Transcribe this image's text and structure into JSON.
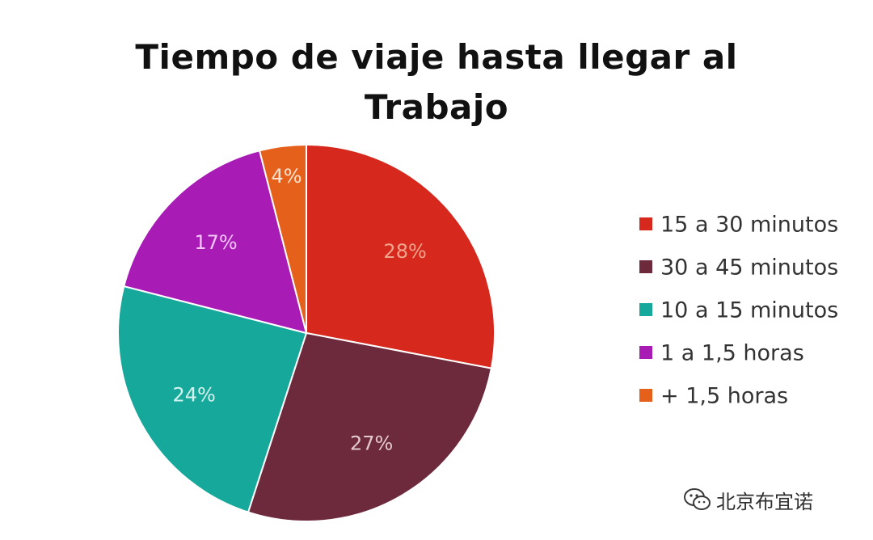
{
  "chart_data": {
    "type": "pie",
    "title": "Tiempo de viaje hasta llegar al Trabajo",
    "slices": [
      {
        "label": "15 a 30 minutos",
        "value": 28,
        "display": "28%",
        "color": "#D7281D",
        "label_color": "#F2A48C"
      },
      {
        "label": "30 a 45 minutos",
        "value": 27,
        "display": "27%",
        "color": "#6E2A3D",
        "label_color": "#E3C9D0"
      },
      {
        "label": "10 a 15 minutos",
        "value": 24,
        "display": "24%",
        "color": "#16A89A",
        "label_color": "#D4F2EE"
      },
      {
        "label": "1 a 1,5 horas",
        "value": 17,
        "display": "17%",
        "color": "#A81BB5",
        "label_color": "#F3C5F8"
      },
      {
        "label": "+ 1,5 horas",
        "value": 4,
        "display": "4%",
        "color": "#E5601B",
        "label_color": "#FFE2CF"
      }
    ],
    "start_direction": "12 o'clock",
    "direction": "clockwise",
    "legend": {
      "position": "right",
      "entries": [
        "15 a 30 minutos",
        "30 a 45 minutos",
        "10 a 15 minutos",
        "1 a 1,5 horas",
        "+ 1,5 horas"
      ]
    }
  },
  "watermark": {
    "text": "北京布宜诺",
    "icon": "wechat-icon"
  }
}
